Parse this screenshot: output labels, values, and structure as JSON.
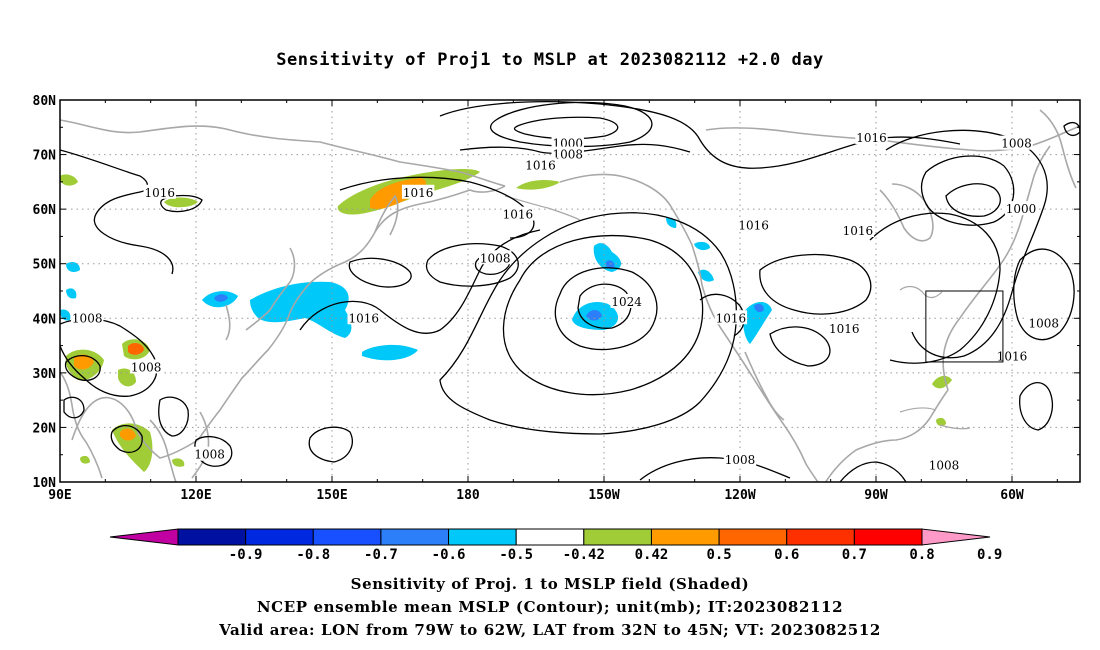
{
  "title": "Sensitivity of Proj1 to MSLP at 2023082112 +2.0 day",
  "map": {
    "lat_labels": [
      "80N",
      "70N",
      "60N",
      "50N",
      "40N",
      "30N",
      "20N",
      "10N"
    ],
    "lon_labels": [
      "90E",
      "120E",
      "150E",
      "180",
      "150W",
      "120W",
      "90W",
      "60W"
    ],
    "domain": {
      "lon_range_deg_east": [
        90,
        315
      ],
      "lat_range": [
        10,
        80
      ]
    },
    "valid_area": {
      "lon": [
        "79W",
        "62W"
      ],
      "lat": [
        "32N",
        "45N"
      ]
    },
    "contour_labels": [
      {
        "text": "1000",
        "lon": 202,
        "lat": 72
      },
      {
        "text": "1008",
        "lon": 202,
        "lat": 70
      },
      {
        "text": "1016",
        "lon": 196,
        "lat": 68
      },
      {
        "text": "1016",
        "lon": 269,
        "lat": 73
      },
      {
        "text": "1008",
        "lon": 301,
        "lat": 72
      },
      {
        "text": "1000",
        "lon": 302,
        "lat": 60
      },
      {
        "text": "1016",
        "lon": 112,
        "lat": 63
      },
      {
        "text": "1016",
        "lon": 169,
        "lat": 63
      },
      {
        "text": "1016",
        "lon": 191,
        "lat": 59
      },
      {
        "text": "1016",
        "lon": 243,
        "lat": 57
      },
      {
        "text": "1016",
        "lon": 266,
        "lat": 56
      },
      {
        "text": "1008",
        "lon": 186,
        "lat": 51
      },
      {
        "text": "1024",
        "lon": 215,
        "lat": 43
      },
      {
        "text": "1016",
        "lon": 157,
        "lat": 40
      },
      {
        "text": "1008",
        "lon": 96,
        "lat": 40
      },
      {
        "text": "1016",
        "lon": 238,
        "lat": 40
      },
      {
        "text": "1016",
        "lon": 263,
        "lat": 38
      },
      {
        "text": "1008",
        "lon": 307,
        "lat": 39
      },
      {
        "text": "1016",
        "lon": 300,
        "lat": 33
      },
      {
        "text": "1008",
        "lon": 109,
        "lat": 31
      },
      {
        "text": "1008",
        "lon": 123,
        "lat": 15
      },
      {
        "text": "1008",
        "lon": 240,
        "lat": 14
      },
      {
        "text": "1008",
        "lon": 285,
        "lat": 13
      }
    ],
    "colors": {
      "contour": "#000000",
      "coast": "#a8a8a8",
      "grid": "#9a9a9a"
    }
  },
  "colorbar": {
    "labels": [
      "-0.9",
      "-0.8",
      "-0.7",
      "-0.6",
      "-0.5",
      "-0.42",
      "0.42",
      "0.5",
      "0.6",
      "0.7",
      "0.8",
      "0.9"
    ],
    "colors": [
      "#c000a0",
      "#0010a0",
      "#0028e0",
      "#1850ff",
      "#2c7ff8",
      "#00c8f8",
      "#ffffff",
      "#a0cc38",
      "#ff9a00",
      "#ff6600",
      "#ff3000",
      "#ff0000",
      "#ff9ac8"
    ]
  },
  "footer": {
    "line1": "Sensitivity of Proj. 1 to MSLP field (Shaded)",
    "line2": "NCEP ensemble mean MSLP (Contour); unit(mb); IT:2023082112",
    "line3": "Valid area: LON from 79W to 62W, LAT from 32N to 45N; VT: 2023082512"
  }
}
